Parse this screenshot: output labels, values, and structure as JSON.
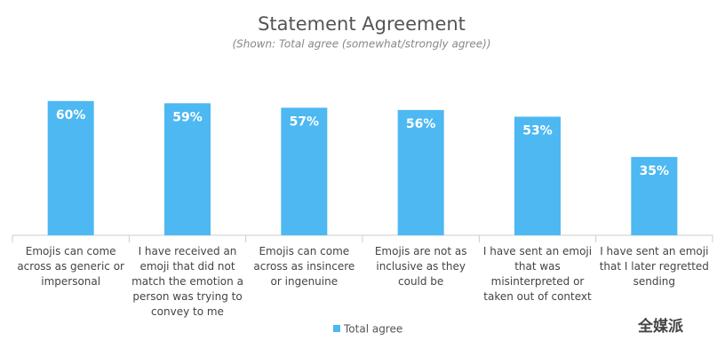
{
  "chart_data": {
    "type": "bar",
    "title": "Statement Agreement",
    "subtitle": "(Shown: Total agree (somewhat/strongly agree))",
    "categories": [
      "Emojis can come across as generic or impersonal",
      "I have received an emoji that did not match the emotion a person was trying to convey to me",
      "Emojis can come across as insincere or ingenuine",
      "Emojis are not as inclusive as they could be",
      "I have sent an emoji that was misinterpreted or taken out of context",
      "I have sent an emoji that I later regretted sending"
    ],
    "series": [
      {
        "name": "Total agree",
        "color": "#4db8f2",
        "values": [
          60,
          59,
          57,
          56,
          53,
          35
        ],
        "value_labels": [
          "60%",
          "59%",
          "57%",
          "56%",
          "53%",
          "35%"
        ]
      }
    ],
    "legend": "bottom",
    "watermark": "全媒派"
  }
}
